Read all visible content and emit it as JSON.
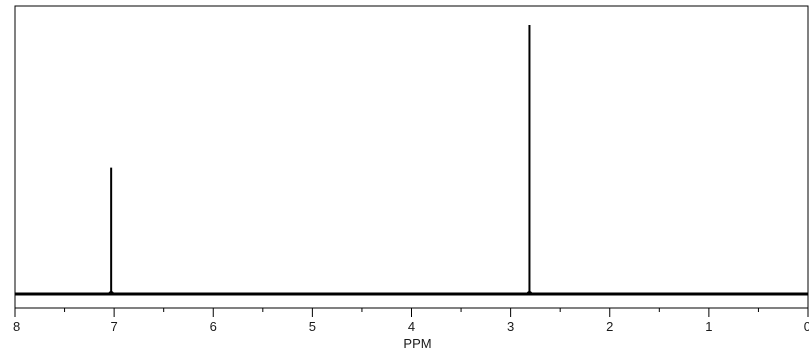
{
  "chart_data": {
    "type": "line",
    "title": "",
    "xlabel": "PPM",
    "ylabel": "",
    "xlim": [
      8,
      0
    ],
    "x_reversed": true,
    "ylim": [
      0,
      1.0
    ],
    "grid": false,
    "major_ticks": [
      8,
      7,
      6,
      5,
      4,
      3,
      2,
      1,
      0
    ],
    "major_tick_labels": [
      "8",
      "7",
      "6",
      "5",
      "4",
      "3",
      "2",
      "1",
      "0"
    ],
    "minor_ticks": [
      7.5,
      6.5,
      5.5,
      4.5,
      3.5,
      2.5,
      1.5,
      0.5
    ],
    "baseline": 0,
    "series": [
      {
        "peaks": [
          {
            "ppm": 7.03,
            "intensity": 0.47
          },
          {
            "ppm": 2.81,
            "intensity": 1.0
          }
        ]
      }
    ],
    "colors": {
      "frame": "#000000",
      "line": "#000000",
      "background": "#ffffff"
    }
  }
}
